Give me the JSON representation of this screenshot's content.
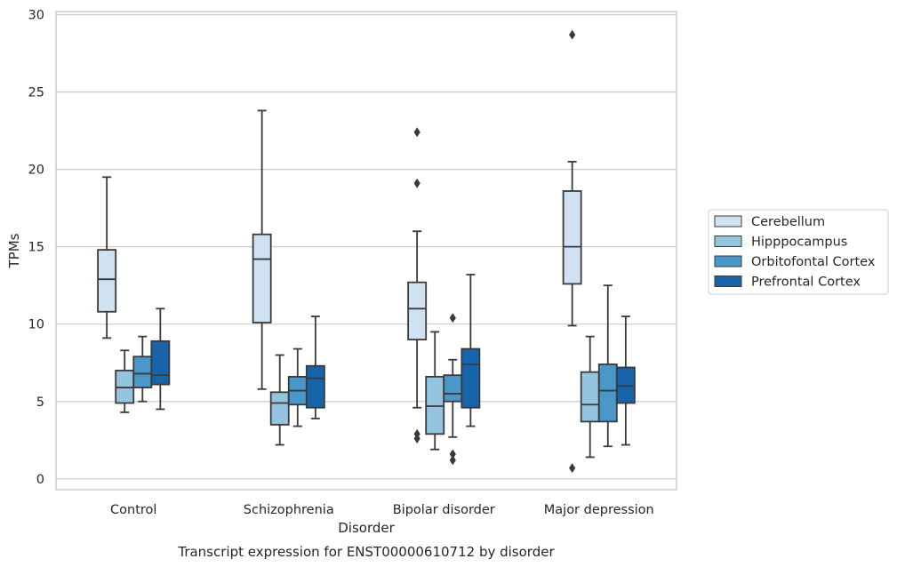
{
  "chart_data": {
    "type": "boxplot",
    "caption": "Transcript expression for ENST00000610712 by disorder",
    "xlabel": "Disorder",
    "ylabel": "TPMs",
    "ylim": [
      -0.7,
      30.2
    ],
    "yticks": [
      0,
      5,
      10,
      15,
      20,
      25,
      30
    ],
    "grid": true,
    "legend_position": "right",
    "categories": [
      "Control",
      "Schizophrenia",
      "Bipolar disorder",
      "Major depression"
    ],
    "series": [
      {
        "name": "Cerebellum",
        "color": "#d0e1f2",
        "boxes": [
          {
            "whislo": 9.1,
            "q1": 10.8,
            "med": 12.9,
            "q3": 14.8,
            "whishi": 19.5,
            "fliers": []
          },
          {
            "whislo": 5.8,
            "q1": 10.1,
            "med": 14.2,
            "q3": 15.8,
            "whishi": 23.8,
            "fliers": []
          },
          {
            "whislo": 4.6,
            "q1": 9.0,
            "med": 11.0,
            "q3": 12.7,
            "whishi": 16.0,
            "fliers": [
              22.4,
              19.1,
              2.9,
              2.6
            ]
          },
          {
            "whislo": 9.9,
            "q1": 12.6,
            "med": 15.0,
            "q3": 18.6,
            "whishi": 20.5,
            "fliers": [
              28.7,
              0.7
            ]
          }
        ]
      },
      {
        "name": "Hipppocampus",
        "color": "#94c4df",
        "boxes": [
          {
            "whislo": 4.3,
            "q1": 4.9,
            "med": 5.9,
            "q3": 7.0,
            "whishi": 8.3,
            "fliers": []
          },
          {
            "whislo": 2.2,
            "q1": 3.5,
            "med": 4.9,
            "q3": 5.6,
            "whishi": 8.0,
            "fliers": []
          },
          {
            "whislo": 1.9,
            "q1": 2.9,
            "med": 4.7,
            "q3": 6.6,
            "whishi": 9.5,
            "fliers": []
          },
          {
            "whislo": 1.4,
            "q1": 3.7,
            "med": 4.8,
            "q3": 6.9,
            "whishi": 9.2,
            "fliers": []
          }
        ]
      },
      {
        "name": "Orbitofontal Cortex",
        "color": "#4a98c9",
        "boxes": [
          {
            "whislo": 5.0,
            "q1": 5.9,
            "med": 6.8,
            "q3": 7.9,
            "whishi": 9.2,
            "fliers": []
          },
          {
            "whislo": 3.4,
            "q1": 4.8,
            "med": 5.7,
            "q3": 6.6,
            "whishi": 8.4,
            "fliers": []
          },
          {
            "whislo": 2.7,
            "q1": 5.0,
            "med": 5.5,
            "q3": 6.7,
            "whishi": 7.7,
            "fliers": [
              10.4,
              1.6,
              1.2
            ]
          },
          {
            "whislo": 2.1,
            "q1": 3.7,
            "med": 5.7,
            "q3": 7.4,
            "whishi": 12.5,
            "fliers": []
          }
        ]
      },
      {
        "name": "Prefrontal Cortex",
        "color": "#1764ab",
        "boxes": [
          {
            "whislo": 4.5,
            "q1": 6.1,
            "med": 6.7,
            "q3": 8.9,
            "whishi": 11.0,
            "fliers": []
          },
          {
            "whislo": 3.9,
            "q1": 4.6,
            "med": 6.5,
            "q3": 7.3,
            "whishi": 10.5,
            "fliers": []
          },
          {
            "whislo": 3.4,
            "q1": 4.6,
            "med": 7.4,
            "q3": 8.4,
            "whishi": 13.2,
            "fliers": []
          },
          {
            "whislo": 2.2,
            "q1": 4.9,
            "med": 6.0,
            "q3": 7.2,
            "whishi": 10.5,
            "fliers": []
          }
        ]
      }
    ]
  }
}
